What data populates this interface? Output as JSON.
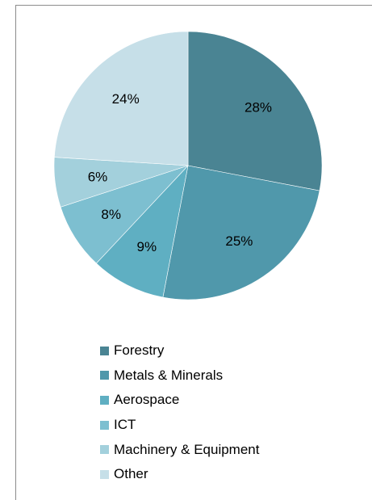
{
  "chart_data": {
    "type": "pie",
    "title": "",
    "slices": [
      {
        "label": "Forestry",
        "value": 28,
        "display": "28%",
        "color": "#4a8493"
      },
      {
        "label": "Metals & Minerals",
        "value": 25,
        "display": "25%",
        "color": "#5098ab"
      },
      {
        "label": "Aerospace",
        "value": 9,
        "display": "9%",
        "color": "#5fafc2"
      },
      {
        "label": "ICT",
        "value": 8,
        "display": "8%",
        "color": "#7dbfd0"
      },
      {
        "label": "Machinery & Equipment",
        "value": 6,
        "display": "6%",
        "color": "#a3d0dc"
      },
      {
        "label": "Other",
        "value": 24,
        "display": "24%",
        "color": "#c6dfe8"
      }
    ],
    "start_angle": "12 o'clock",
    "direction": "clockwise",
    "legend_position": "bottom"
  }
}
